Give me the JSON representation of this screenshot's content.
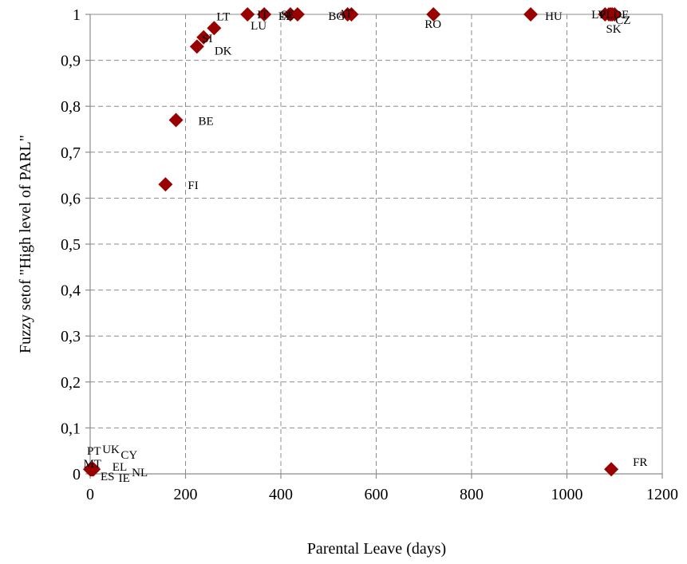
{
  "chart_data": {
    "type": "scatter",
    "xlabel": "Parental Leave (days)",
    "ylabel": "Fuzzy setof \"High level of PARL\"",
    "xlim": [
      0,
      1200
    ],
    "ylim": [
      0,
      1
    ],
    "x_ticks": [
      0,
      200,
      400,
      600,
      800,
      1000,
      1200
    ],
    "y_ticks": [
      0,
      0.1,
      0.2,
      0.3,
      0.4,
      0.5,
      0.6,
      0.7,
      0.8,
      0.9,
      1
    ],
    "x_tick_labels": [
      "0",
      "200",
      "400",
      "600",
      "800",
      "1000",
      "1200"
    ],
    "y_tick_labels": [
      "0",
      "0,1",
      "0,2",
      "0,3",
      "0,4",
      "0,5",
      "0,6",
      "0,7",
      "0,8",
      "0,9",
      "1"
    ],
    "grid": true,
    "marker": "diamond",
    "marker_color": "#990000",
    "points": [
      {
        "label": "PT",
        "x": 0,
        "y": 0.01
      },
      {
        "label": "UK",
        "x": 2,
        "y": 0.01
      },
      {
        "label": "CY",
        "x": 4,
        "y": 0.01
      },
      {
        "label": "MT",
        "x": 1,
        "y": 0.01
      },
      {
        "label": "EL",
        "x": 3,
        "y": 0.01
      },
      {
        "label": "ES",
        "x": 5,
        "y": 0.01
      },
      {
        "label": "IE",
        "x": 6,
        "y": 0.01
      },
      {
        "label": "NL",
        "x": 7,
        "y": 0.01
      },
      {
        "label": "FI",
        "x": 158,
        "y": 0.63
      },
      {
        "label": "BE",
        "x": 180,
        "y": 0.77
      },
      {
        "label": "DK",
        "x": 224,
        "y": 0.93
      },
      {
        "label": "SI",
        "x": 238,
        "y": 0.95
      },
      {
        "label": "LT",
        "x": 260,
        "y": 0.97
      },
      {
        "label": "IT",
        "x": 330,
        "y": 1
      },
      {
        "label": "LU",
        "x": 365,
        "y": 1
      },
      {
        "label": "SE",
        "x": 420,
        "y": 1
      },
      {
        "label": "EE",
        "x": 435,
        "y": 1
      },
      {
        "label": "AT",
        "x": 540,
        "y": 1
      },
      {
        "label": "BG",
        "x": 548,
        "y": 1
      },
      {
        "label": "RO",
        "x": 720,
        "y": 1
      },
      {
        "label": "HU",
        "x": 924,
        "y": 1
      },
      {
        "label": "LV",
        "x": 1080,
        "y": 1
      },
      {
        "label": "PL",
        "x": 1088,
        "y": 1
      },
      {
        "label": "DE",
        "x": 1095,
        "y": 1
      },
      {
        "label": "SK",
        "x": 1092,
        "y": 1
      },
      {
        "label": "CZ",
        "x": 1100,
        "y": 1
      },
      {
        "label": "FR",
        "x": 1093,
        "y": 0.01
      }
    ]
  }
}
